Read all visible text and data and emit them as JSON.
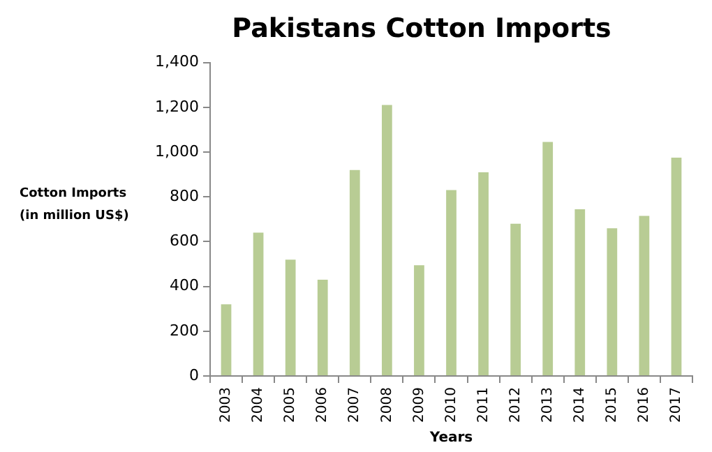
{
  "chart_data": {
    "type": "bar",
    "title": "Pakistans Cotton Imports",
    "xlabel": "Years",
    "ylabel": "Cotton Imports (in million US$)",
    "categories": [
      "2003",
      "2004",
      "2005",
      "2006",
      "2007",
      "2008",
      "2009",
      "2010",
      "2011",
      "2012",
      "2013",
      "2014",
      "2015",
      "2016",
      "2017"
    ],
    "values": [
      320,
      640,
      520,
      430,
      920,
      1210,
      495,
      830,
      910,
      680,
      1045,
      745,
      660,
      715,
      975
    ],
    "color": "#b8cc94",
    "ylim": [
      0,
      1400
    ],
    "yticks": [
      0,
      200,
      400,
      600,
      800,
      {
        "value": 1000,
        "label": "1,000"
      },
      {
        "value": 1200,
        "label": "1,200"
      },
      {
        "value": 1400,
        "label": "1,400"
      }
    ],
    "grid": false,
    "legend": false
  }
}
